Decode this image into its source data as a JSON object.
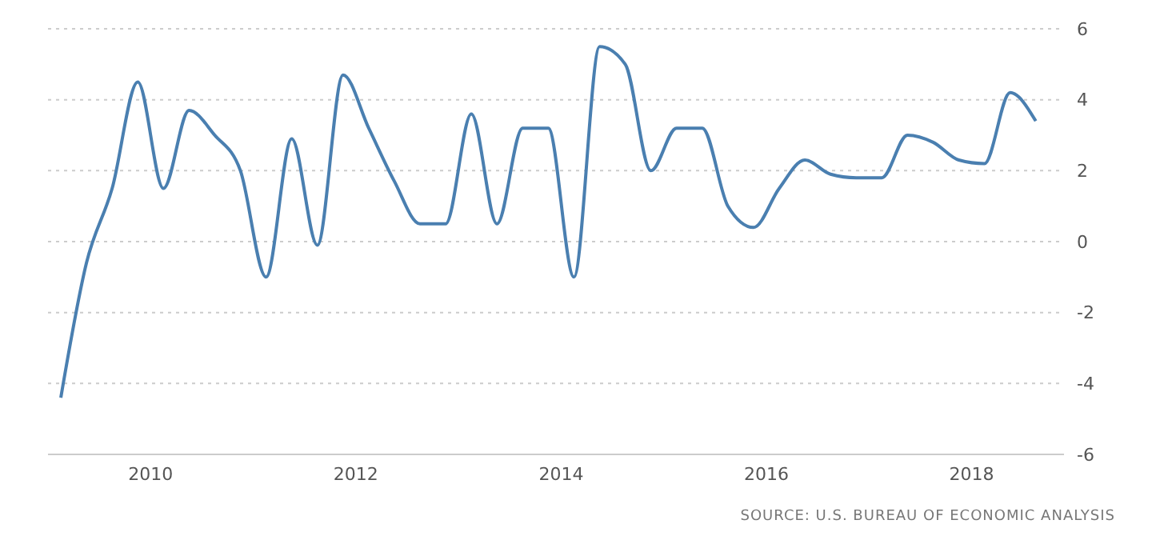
{
  "chart_data": {
    "type": "line",
    "x": [
      2009.125,
      2009.375,
      2009.625,
      2009.875,
      2010.125,
      2010.375,
      2010.625,
      2010.875,
      2011.125,
      2011.375,
      2011.625,
      2011.875,
      2012.125,
      2012.375,
      2012.625,
      2012.875,
      2013.125,
      2013.375,
      2013.625,
      2013.875,
      2014.125,
      2014.375,
      2014.625,
      2014.875,
      2015.125,
      2015.375,
      2015.625,
      2015.875,
      2016.125,
      2016.375,
      2016.625,
      2016.875,
      2017.125,
      2017.375,
      2017.625,
      2017.875,
      2018.125,
      2018.375,
      2018.625
    ],
    "series": [
      {
        "color": "#4a7fb0",
        "values": [
          -4.4,
          -0.6,
          1.5,
          4.5,
          1.5,
          3.7,
          3.0,
          2.0,
          -1.0,
          2.9,
          -0.1,
          4.7,
          3.2,
          1.7,
          0.5,
          0.5,
          3.6,
          0.5,
          3.2,
          3.2,
          -1.0,
          5.5,
          5.0,
          2.0,
          3.2,
          3.2,
          1.0,
          0.4,
          1.5,
          2.3,
          1.9,
          1.8,
          1.8,
          3.0,
          2.8,
          2.3,
          2.2,
          4.2,
          3.4
        ]
      }
    ],
    "xlim": [
      2009,
      2018.9
    ],
    "xticks": [
      2010,
      2012,
      2014,
      2016,
      2018
    ],
    "ylim": [
      -6,
      6
    ],
    "yticks": [
      -6,
      -4,
      -2,
      0,
      2,
      4,
      6
    ],
    "grid": "y",
    "marker": "none",
    "line_style": "solid",
    "annotations": [
      "SOURCE: U.S. BUREAU OF ECONOMIC ANALYSIS"
    ]
  }
}
